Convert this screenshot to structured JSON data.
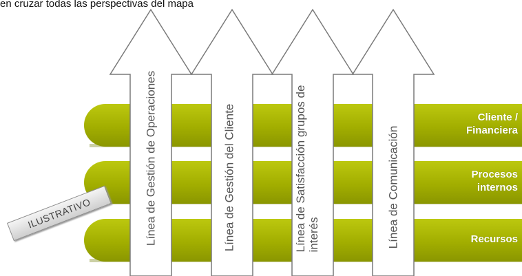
{
  "heading": "en cruzar todas las perspectivas del mapa",
  "arrows": [
    {
      "label": "Línea de Gestión de Operaciones"
    },
    {
      "label": "Línea de Gestión del Cliente"
    },
    {
      "label": "Línea de Satisfacción grupos de\ninterés"
    },
    {
      "label": "Línea de Comunicación"
    }
  ],
  "bands": [
    {
      "label": "Cliente /\nFinanciera"
    },
    {
      "label": "Procesos\ninternos"
    },
    {
      "label": "Recursos"
    }
  ],
  "stamp": "ILUSTRATIVO",
  "colors": {
    "band_light": "#a8b400",
    "band_dark": "#8a9600",
    "arrow_stroke": "#7a7a7a",
    "arrow_fill": "#ffffff"
  }
}
